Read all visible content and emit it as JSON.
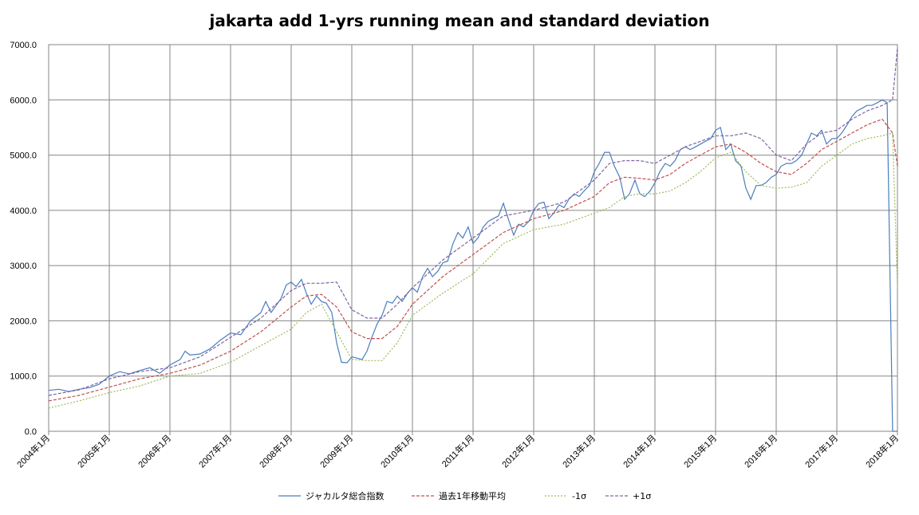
{
  "chart_data": {
    "type": "line",
    "title": "jakarta add 1-yrs running mean and standard deviation",
    "xlabel": "",
    "ylabel": "",
    "ylim": [
      0,
      7000
    ],
    "y_ticks": [
      "0.0",
      "1000.0",
      "2000.0",
      "3000.0",
      "4000.0",
      "5000.0",
      "6000.0",
      "7000.0"
    ],
    "x_ticks": [
      "2004年1月",
      "2005年1月",
      "2006年1月",
      "2007年1月",
      "2008年1月",
      "2009年1月",
      "2010年1月",
      "2011年1月",
      "2012年1月",
      "2013年1月",
      "2014年1月",
      "2015年1月",
      "2016年1月",
      "2017年1月",
      "2018年1月"
    ],
    "x_start_year": 2004,
    "grid": true,
    "legend_position": "bottom",
    "series": [
      {
        "name": "ジャカルタ総合指数",
        "color": "#4a7ebb",
        "dash": "",
        "points": [
          [
            2004.0,
            740
          ],
          [
            2004.17,
            760
          ],
          [
            2004.33,
            720
          ],
          [
            2004.5,
            760
          ],
          [
            2004.67,
            790
          ],
          [
            2004.83,
            850
          ],
          [
            2005.0,
            1000
          ],
          [
            2005.17,
            1080
          ],
          [
            2005.33,
            1040
          ],
          [
            2005.5,
            1100
          ],
          [
            2005.67,
            1150
          ],
          [
            2005.83,
            1050
          ],
          [
            2006.0,
            1200
          ],
          [
            2006.17,
            1300
          ],
          [
            2006.25,
            1450
          ],
          [
            2006.33,
            1380
          ],
          [
            2006.5,
            1400
          ],
          [
            2006.67,
            1500
          ],
          [
            2006.83,
            1650
          ],
          [
            2007.0,
            1780
          ],
          [
            2007.17,
            1750
          ],
          [
            2007.33,
            2000
          ],
          [
            2007.5,
            2150
          ],
          [
            2007.58,
            2350
          ],
          [
            2007.67,
            2150
          ],
          [
            2007.83,
            2400
          ],
          [
            2007.92,
            2650
          ],
          [
            2008.0,
            2700
          ],
          [
            2008.08,
            2620
          ],
          [
            2008.17,
            2750
          ],
          [
            2008.25,
            2500
          ],
          [
            2008.33,
            2300
          ],
          [
            2008.42,
            2450
          ],
          [
            2008.5,
            2350
          ],
          [
            2008.58,
            2320
          ],
          [
            2008.67,
            2150
          ],
          [
            2008.75,
            1600
          ],
          [
            2008.83,
            1250
          ],
          [
            2008.92,
            1240
          ],
          [
            2009.0,
            1350
          ],
          [
            2009.17,
            1300
          ],
          [
            2009.25,
            1450
          ],
          [
            2009.33,
            1700
          ],
          [
            2009.42,
            1950
          ],
          [
            2009.5,
            2100
          ],
          [
            2009.58,
            2350
          ],
          [
            2009.67,
            2320
          ],
          [
            2009.75,
            2450
          ],
          [
            2009.83,
            2350
          ],
          [
            2009.92,
            2500
          ],
          [
            2010.0,
            2600
          ],
          [
            2010.08,
            2520
          ],
          [
            2010.17,
            2800
          ],
          [
            2010.25,
            2950
          ],
          [
            2010.33,
            2800
          ],
          [
            2010.42,
            2900
          ],
          [
            2010.5,
            3050
          ],
          [
            2010.58,
            3080
          ],
          [
            2010.67,
            3400
          ],
          [
            2010.75,
            3600
          ],
          [
            2010.83,
            3500
          ],
          [
            2010.92,
            3700
          ],
          [
            2011.0,
            3400
          ],
          [
            2011.08,
            3500
          ],
          [
            2011.17,
            3700
          ],
          [
            2011.25,
            3800
          ],
          [
            2011.33,
            3850
          ],
          [
            2011.42,
            3900
          ],
          [
            2011.5,
            4130
          ],
          [
            2011.58,
            3850
          ],
          [
            2011.67,
            3550
          ],
          [
            2011.75,
            3750
          ],
          [
            2011.83,
            3700
          ],
          [
            2011.92,
            3800
          ],
          [
            2012.0,
            4000
          ],
          [
            2012.08,
            4120
          ],
          [
            2012.17,
            4150
          ],
          [
            2012.25,
            3850
          ],
          [
            2012.33,
            3950
          ],
          [
            2012.42,
            4100
          ],
          [
            2012.5,
            4050
          ],
          [
            2012.58,
            4200
          ],
          [
            2012.67,
            4300
          ],
          [
            2012.75,
            4250
          ],
          [
            2012.83,
            4350
          ],
          [
            2012.92,
            4450
          ],
          [
            2013.0,
            4700
          ],
          [
            2013.08,
            4850
          ],
          [
            2013.17,
            5050
          ],
          [
            2013.25,
            5050
          ],
          [
            2013.33,
            4800
          ],
          [
            2013.42,
            4600
          ],
          [
            2013.5,
            4200
          ],
          [
            2013.58,
            4300
          ],
          [
            2013.67,
            4550
          ],
          [
            2013.75,
            4300
          ],
          [
            2013.83,
            4250
          ],
          [
            2013.92,
            4350
          ],
          [
            2014.0,
            4500
          ],
          [
            2014.08,
            4700
          ],
          [
            2014.17,
            4850
          ],
          [
            2014.25,
            4800
          ],
          [
            2014.33,
            4900
          ],
          [
            2014.42,
            5100
          ],
          [
            2014.5,
            5150
          ],
          [
            2014.58,
            5100
          ],
          [
            2014.67,
            5150
          ],
          [
            2014.75,
            5200
          ],
          [
            2014.83,
            5250
          ],
          [
            2014.92,
            5300
          ],
          [
            2015.0,
            5450
          ],
          [
            2015.08,
            5500
          ],
          [
            2015.17,
            5100
          ],
          [
            2015.25,
            5200
          ],
          [
            2015.33,
            4900
          ],
          [
            2015.42,
            4800
          ],
          [
            2015.5,
            4400
          ],
          [
            2015.58,
            4200
          ],
          [
            2015.67,
            4450
          ],
          [
            2015.75,
            4450
          ],
          [
            2015.83,
            4500
          ],
          [
            2015.92,
            4600
          ],
          [
            2016.0,
            4650
          ],
          [
            2016.08,
            4800
          ],
          [
            2016.17,
            4850
          ],
          [
            2016.25,
            4850
          ],
          [
            2016.33,
            4900
          ],
          [
            2016.42,
            5000
          ],
          [
            2016.5,
            5200
          ],
          [
            2016.58,
            5400
          ],
          [
            2016.67,
            5350
          ],
          [
            2016.75,
            5450
          ],
          [
            2016.83,
            5200
          ],
          [
            2016.92,
            5300
          ],
          [
            2017.0,
            5300
          ],
          [
            2017.08,
            5400
          ],
          [
            2017.17,
            5550
          ],
          [
            2017.25,
            5700
          ],
          [
            2017.33,
            5800
          ],
          [
            2017.42,
            5850
          ],
          [
            2017.5,
            5900
          ],
          [
            2017.58,
            5900
          ],
          [
            2017.67,
            5950
          ],
          [
            2017.75,
            6000
          ],
          [
            2017.83,
            5950
          ],
          [
            2017.92,
            0
          ],
          [
            2018.0,
            0
          ]
        ]
      },
      {
        "name": "過去1年移動平均",
        "color": "#c0504d",
        "dash": "4,2",
        "points": [
          [
            2004.0,
            550
          ],
          [
            2004.5,
            650
          ],
          [
            2005.0,
            800
          ],
          [
            2005.5,
            950
          ],
          [
            2006.0,
            1050
          ],
          [
            2006.5,
            1200
          ],
          [
            2007.0,
            1450
          ],
          [
            2007.5,
            1800
          ],
          [
            2008.0,
            2250
          ],
          [
            2008.25,
            2450
          ],
          [
            2008.5,
            2480
          ],
          [
            2008.75,
            2250
          ],
          [
            2009.0,
            1800
          ],
          [
            2009.25,
            1680
          ],
          [
            2009.5,
            1680
          ],
          [
            2009.75,
            1900
          ],
          [
            2010.0,
            2300
          ],
          [
            2010.5,
            2800
          ],
          [
            2011.0,
            3200
          ],
          [
            2011.5,
            3600
          ],
          [
            2012.0,
            3850
          ],
          [
            2012.5,
            4000
          ],
          [
            2013.0,
            4250
          ],
          [
            2013.25,
            4500
          ],
          [
            2013.5,
            4600
          ],
          [
            2013.75,
            4580
          ],
          [
            2014.0,
            4550
          ],
          [
            2014.25,
            4650
          ],
          [
            2014.5,
            4850
          ],
          [
            2014.75,
            5000
          ],
          [
            2015.0,
            5150
          ],
          [
            2015.25,
            5200
          ],
          [
            2015.5,
            5050
          ],
          [
            2015.75,
            4850
          ],
          [
            2016.0,
            4700
          ],
          [
            2016.25,
            4650
          ],
          [
            2016.5,
            4850
          ],
          [
            2016.75,
            5100
          ],
          [
            2017.0,
            5250
          ],
          [
            2017.25,
            5400
          ],
          [
            2017.5,
            5550
          ],
          [
            2017.75,
            5650
          ],
          [
            2017.92,
            5400
          ],
          [
            2018.0,
            4800
          ]
        ]
      },
      {
        "name": "-1σ",
        "color": "#9bbb59",
        "dash": "2,2",
        "points": [
          [
            2004.0,
            420
          ],
          [
            2004.5,
            550
          ],
          [
            2005.0,
            700
          ],
          [
            2005.5,
            820
          ],
          [
            2006.0,
            1000
          ],
          [
            2006.5,
            1050
          ],
          [
            2007.0,
            1250
          ],
          [
            2007.5,
            1550
          ],
          [
            2008.0,
            1850
          ],
          [
            2008.25,
            2150
          ],
          [
            2008.5,
            2300
          ],
          [
            2008.75,
            1800
          ],
          [
            2009.0,
            1300
          ],
          [
            2009.25,
            1280
          ],
          [
            2009.5,
            1280
          ],
          [
            2009.75,
            1600
          ],
          [
            2010.0,
            2100
          ],
          [
            2010.5,
            2500
          ],
          [
            2011.0,
            2850
          ],
          [
            2011.5,
            3400
          ],
          [
            2012.0,
            3650
          ],
          [
            2012.5,
            3750
          ],
          [
            2013.0,
            3950
          ],
          [
            2013.25,
            4050
          ],
          [
            2013.5,
            4250
          ],
          [
            2013.75,
            4300
          ],
          [
            2014.0,
            4300
          ],
          [
            2014.25,
            4350
          ],
          [
            2014.5,
            4500
          ],
          [
            2014.75,
            4700
          ],
          [
            2015.0,
            4950
          ],
          [
            2015.25,
            5050
          ],
          [
            2015.5,
            4700
          ],
          [
            2015.75,
            4450
          ],
          [
            2016.0,
            4400
          ],
          [
            2016.25,
            4420
          ],
          [
            2016.5,
            4500
          ],
          [
            2016.75,
            4800
          ],
          [
            2017.0,
            5000
          ],
          [
            2017.25,
            5200
          ],
          [
            2017.5,
            5300
          ],
          [
            2017.75,
            5350
          ],
          [
            2017.92,
            5400
          ],
          [
            2018.0,
            2600
          ]
        ]
      },
      {
        "name": "+1σ",
        "color": "#8064a2",
        "dash": "4,2",
        "points": [
          [
            2004.0,
            650
          ],
          [
            2004.5,
            750
          ],
          [
            2005.0,
            950
          ],
          [
            2005.5,
            1080
          ],
          [
            2006.0,
            1150
          ],
          [
            2006.5,
            1350
          ],
          [
            2007.0,
            1700
          ],
          [
            2007.5,
            2050
          ],
          [
            2008.0,
            2550
          ],
          [
            2008.25,
            2680
          ],
          [
            2008.5,
            2680
          ],
          [
            2008.75,
            2700
          ],
          [
            2009.0,
            2200
          ],
          [
            2009.25,
            2050
          ],
          [
            2009.5,
            2050
          ],
          [
            2009.75,
            2300
          ],
          [
            2010.0,
            2600
          ],
          [
            2010.5,
            3100
          ],
          [
            2011.0,
            3500
          ],
          [
            2011.5,
            3900
          ],
          [
            2012.0,
            4000
          ],
          [
            2012.5,
            4150
          ],
          [
            2013.0,
            4550
          ],
          [
            2013.25,
            4850
          ],
          [
            2013.5,
            4900
          ],
          [
            2013.75,
            4900
          ],
          [
            2014.0,
            4850
          ],
          [
            2014.25,
            5000
          ],
          [
            2014.5,
            5150
          ],
          [
            2014.75,
            5250
          ],
          [
            2015.0,
            5350
          ],
          [
            2015.25,
            5350
          ],
          [
            2015.5,
            5400
          ],
          [
            2015.75,
            5300
          ],
          [
            2016.0,
            5000
          ],
          [
            2016.25,
            4900
          ],
          [
            2016.5,
            5200
          ],
          [
            2016.75,
            5400
          ],
          [
            2017.0,
            5450
          ],
          [
            2017.25,
            5650
          ],
          [
            2017.5,
            5800
          ],
          [
            2017.75,
            5900
          ],
          [
            2017.92,
            6000
          ],
          [
            2018.0,
            6950
          ]
        ]
      }
    ]
  }
}
